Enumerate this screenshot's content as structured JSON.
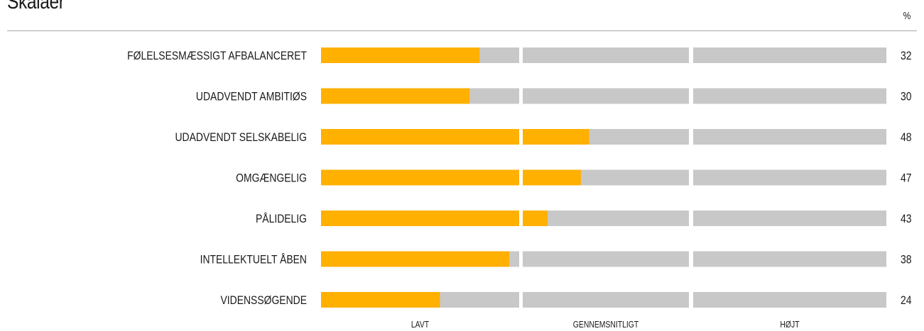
{
  "title": "Skalaer",
  "unit": "%",
  "colors": {
    "fill": "#FFB000",
    "track": "#C8C8C8",
    "text": "#1a1a1a"
  },
  "chart_data": {
    "type": "bar",
    "orientation": "horizontal",
    "title": "Skalaer",
    "unit": "%",
    "xlim": [
      0,
      100
    ],
    "zones": [
      {
        "label": "LAVT",
        "range": [
          0,
          40
        ]
      },
      {
        "label": "GENNEMSNITLIGT",
        "range": [
          40,
          60
        ]
      },
      {
        "label": "HØJT",
        "range": [
          60,
          100
        ]
      }
    ],
    "categories": [
      "FØLELSESMÆSSIGT AFBALANCERET",
      "UDADVENDT AMBITIØS",
      "UDADVENDT SELSKABELIG",
      "OMGÆNGELIG",
      "PÅLIDELIG",
      "INTELLEKTUELT ÅBEN",
      "VIDENSSØGENDE"
    ],
    "values": [
      32,
      30,
      48,
      47,
      43,
      38,
      24
    ]
  }
}
